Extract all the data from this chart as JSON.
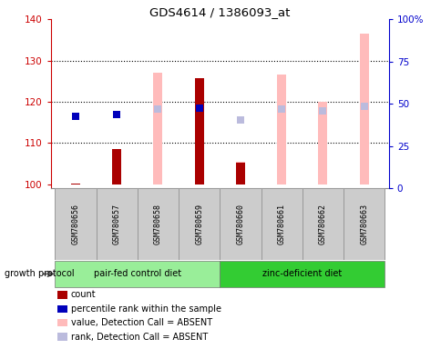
{
  "title": "GDS4614 / 1386093_at",
  "samples": [
    "GSM780656",
    "GSM780657",
    "GSM780658",
    "GSM780659",
    "GSM780660",
    "GSM780661",
    "GSM780662",
    "GSM780663"
  ],
  "ylim_left": [
    99,
    140
  ],
  "ylim_right": [
    0,
    100
  ],
  "left_ticks": [
    100,
    110,
    120,
    130,
    140
  ],
  "right_tick_labels": [
    "0",
    "25",
    "50",
    "75",
    "100%"
  ],
  "count_values": [
    100.2,
    108.6,
    null,
    125.8,
    105.2,
    null,
    null,
    null
  ],
  "count_color": "#aa0000",
  "percentile_values": [
    116.5,
    117.0,
    null,
    118.5,
    null,
    null,
    null,
    null
  ],
  "percentile_color": "#0000bb",
  "absent_value_bars": [
    null,
    null,
    127.0,
    null,
    105.5,
    126.5,
    120.0,
    136.5
  ],
  "absent_value_base": 100,
  "absent_value_color": "#ffbbbb",
  "absent_rank_values": [
    null,
    null,
    118.2,
    118.5,
    115.5,
    118.2,
    117.7,
    119.0
  ],
  "absent_rank_color": "#bbbbdd",
  "group1_label": "pair-fed control diet",
  "group2_label": "zinc-deficient diet",
  "group1_color": "#99ee99",
  "group2_color": "#33cc33",
  "group1_indices": [
    0,
    1,
    2,
    3
  ],
  "group2_indices": [
    4,
    5,
    6,
    7
  ],
  "protocol_label": "growth protocol",
  "legend_items": [
    {
      "label": "count",
      "color": "#aa0000"
    },
    {
      "label": "percentile rank within the sample",
      "color": "#0000bb"
    },
    {
      "label": "value, Detection Call = ABSENT",
      "color": "#ffbbbb"
    },
    {
      "label": "rank, Detection Call = ABSENT",
      "color": "#bbbbdd"
    }
  ],
  "bar_width": 0.55,
  "absent_bar_width": 0.22,
  "count_bar_width": 0.22,
  "point_size": 30,
  "left_tick_color": "#cc0000",
  "right_tick_color": "#0000cc",
  "grid_yticks": [
    110,
    120,
    130
  ],
  "sample_label_color": "#cccccc",
  "sample_box_edge_color": "#999999"
}
